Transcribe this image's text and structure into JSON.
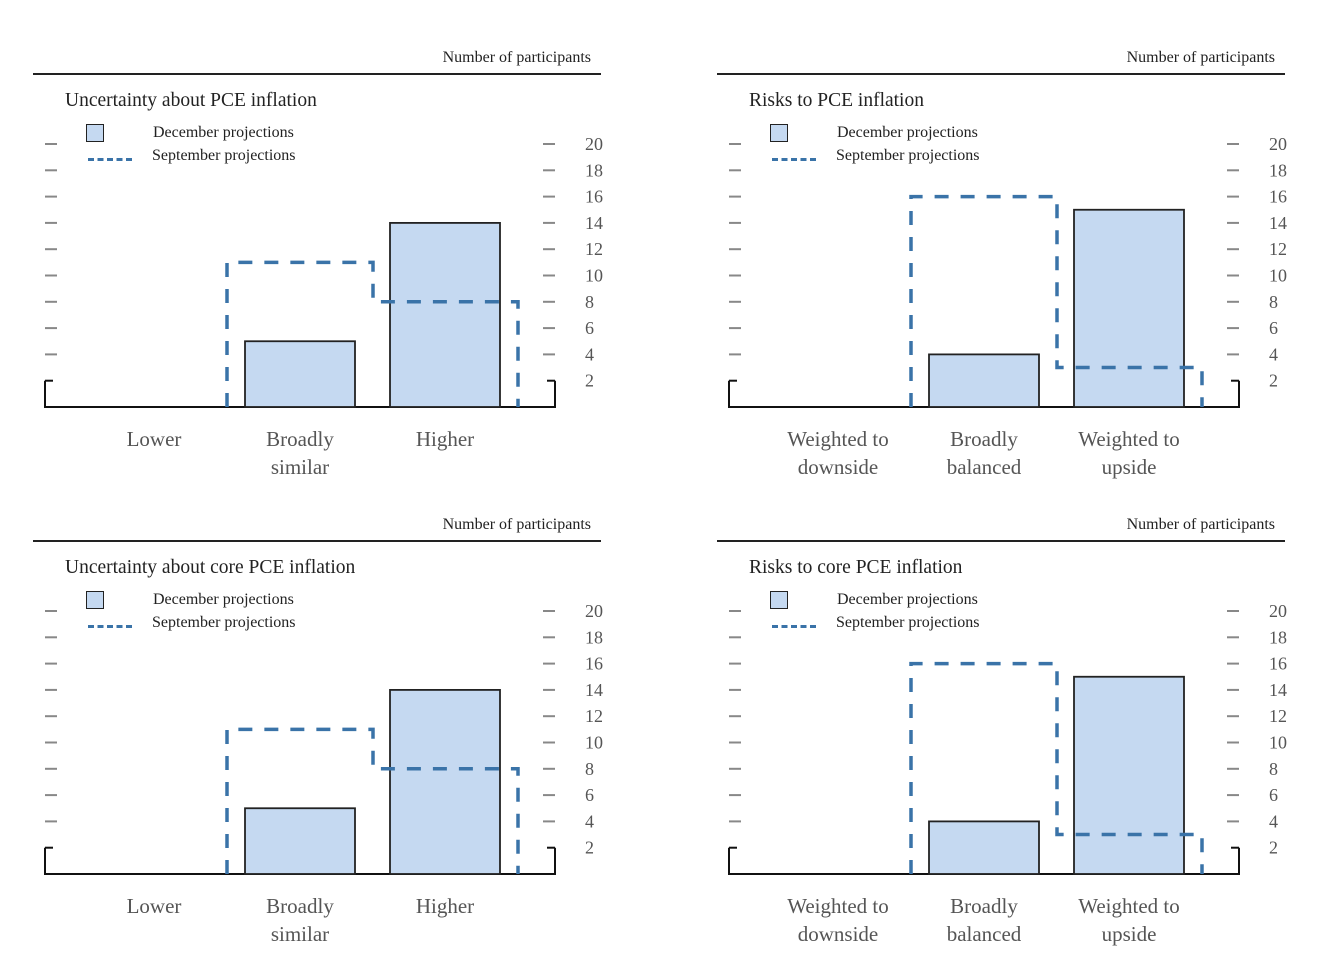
{
  "colors": {
    "december_fill": "#c5d9f1",
    "december_stroke": "#222222",
    "september_line": "#3a73a8",
    "axis": "#111111",
    "tick": "#888888",
    "label": "#555555"
  },
  "chart_data": [
    {
      "type": "bar",
      "title": "Uncertainty about PCE inflation",
      "units_label": "Number of participants",
      "categories": [
        "Lower",
        "Broadly similar",
        "Higher"
      ],
      "category_lines": [
        [
          "Lower"
        ],
        [
          "Broadly",
          "similar"
        ],
        [
          "Higher"
        ]
      ],
      "series": [
        {
          "name": "December projections",
          "style": "bar",
          "values": [
            0,
            5,
            14
          ]
        },
        {
          "name": "September projections",
          "style": "dashed-step",
          "values": [
            0,
            11,
            8
          ]
        }
      ],
      "ylim": [
        0,
        20
      ],
      "yticks": [
        2,
        4,
        6,
        8,
        10,
        12,
        14,
        16,
        18,
        20
      ],
      "ylabel": "Number of participants",
      "legend": "top-left",
      "grid": false
    },
    {
      "type": "bar",
      "title": "Risks to PCE inflation",
      "units_label": "Number of participants",
      "categories": [
        "Weighted to downside",
        "Broadly balanced",
        "Weighted to upside"
      ],
      "category_lines": [
        [
          "Weighted to",
          "downside"
        ],
        [
          "Broadly",
          "balanced"
        ],
        [
          "Weighted to",
          "upside"
        ]
      ],
      "series": [
        {
          "name": "December projections",
          "style": "bar",
          "values": [
            0,
            4,
            15
          ]
        },
        {
          "name": "September projections",
          "style": "dashed-step",
          "values": [
            0,
            16,
            3
          ]
        }
      ],
      "ylim": [
        0,
        20
      ],
      "yticks": [
        2,
        4,
        6,
        8,
        10,
        12,
        14,
        16,
        18,
        20
      ],
      "ylabel": "Number of participants",
      "legend": "top-left",
      "grid": false
    },
    {
      "type": "bar",
      "title": "Uncertainty about core PCE inflation",
      "units_label": "Number of participants",
      "categories": [
        "Lower",
        "Broadly similar",
        "Higher"
      ],
      "category_lines": [
        [
          "Lower"
        ],
        [
          "Broadly",
          "similar"
        ],
        [
          "Higher"
        ]
      ],
      "series": [
        {
          "name": "December projections",
          "style": "bar",
          "values": [
            0,
            5,
            14
          ]
        },
        {
          "name": "September projections",
          "style": "dashed-step",
          "values": [
            0,
            11,
            8
          ]
        }
      ],
      "ylim": [
        0,
        20
      ],
      "yticks": [
        2,
        4,
        6,
        8,
        10,
        12,
        14,
        16,
        18,
        20
      ],
      "ylabel": "Number of participants",
      "legend": "top-left",
      "grid": false
    },
    {
      "type": "bar",
      "title": "Risks to core PCE inflation",
      "units_label": "Number of participants",
      "categories": [
        "Weighted to downside",
        "Broadly balanced",
        "Weighted to upside"
      ],
      "category_lines": [
        [
          "Weighted to",
          "downside"
        ],
        [
          "Broadly",
          "balanced"
        ],
        [
          "Weighted to",
          "upside"
        ]
      ],
      "series": [
        {
          "name": "December projections",
          "style": "bar",
          "values": [
            0,
            4,
            15
          ]
        },
        {
          "name": "September projections",
          "style": "dashed-step",
          "values": [
            0,
            16,
            3
          ]
        }
      ],
      "ylim": [
        0,
        20
      ],
      "yticks": [
        2,
        4,
        6,
        8,
        10,
        12,
        14,
        16,
        18,
        20
      ],
      "ylabel": "Number of participants",
      "legend": "top-left",
      "grid": false
    }
  ]
}
